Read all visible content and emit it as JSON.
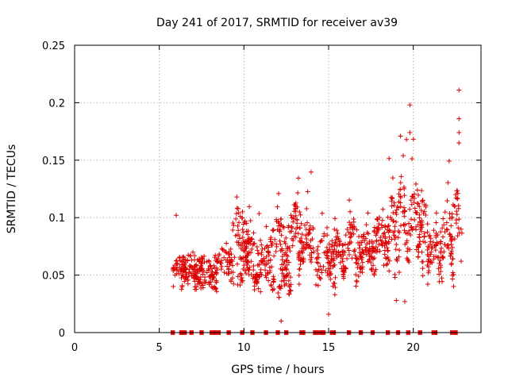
{
  "chart_data": {
    "type": "scatter",
    "title": "Day 241 of 2017, SRMTID for receiver av39",
    "xlabel": "GPS time / hours",
    "ylabel": "SRMTID / TECUs",
    "xlim": [
      0,
      24
    ],
    "ylim": [
      0,
      0.25
    ],
    "xticks": [
      0,
      5,
      10,
      15,
      20
    ],
    "xtick_labels": [
      "0",
      "5",
      "10",
      "15",
      "20"
    ],
    "yticks": [
      0,
      0.05,
      0.1,
      0.15,
      0.2,
      0.25
    ],
    "ytick_labels": [
      "0",
      "0.05",
      "0.1",
      "0.15",
      "0.2",
      "0.25"
    ],
    "grid": true,
    "marker": "plus",
    "color": "#dd0000",
    "series": [
      {
        "name": "SRMTID",
        "arcs": [
          {
            "start": 5.8,
            "end": 6.7,
            "base": 0.052,
            "amp": 0.012,
            "spread": 0.01,
            "peak": 0.066
          },
          {
            "start": 6.2,
            "end": 7.6,
            "base": 0.05,
            "amp": 0.01,
            "spread": 0.012,
            "peak": 0.07
          },
          {
            "start": 7.0,
            "end": 8.4,
            "base": 0.048,
            "amp": 0.01,
            "spread": 0.012,
            "peak": 0.068
          },
          {
            "start": 8.0,
            "end": 9.4,
            "base": 0.055,
            "amp": 0.012,
            "spread": 0.012,
            "peak": 0.078
          },
          {
            "start": 9.2,
            "end": 10.3,
            "base": 0.075,
            "amp": 0.025,
            "spread": 0.018,
            "peak": 0.12
          },
          {
            "start": 9.6,
            "end": 11.0,
            "base": 0.055,
            "amp": 0.02,
            "spread": 0.018,
            "peak": 0.11
          },
          {
            "start": 10.5,
            "end": 11.8,
            "base": 0.05,
            "amp": 0.02,
            "spread": 0.015,
            "peak": 0.104
          },
          {
            "start": 11.4,
            "end": 12.6,
            "base": 0.07,
            "amp": 0.022,
            "spread": 0.016,
            "peak": 0.122
          },
          {
            "start": 12.0,
            "end": 12.8,
            "base": 0.04,
            "amp": 0.015,
            "spread": 0.012,
            "peak": 0.08
          },
          {
            "start": 12.6,
            "end": 13.6,
            "base": 0.08,
            "amp": 0.025,
            "spread": 0.018,
            "peak": 0.136
          },
          {
            "start": 13.2,
            "end": 14.4,
            "base": 0.06,
            "amp": 0.03,
            "spread": 0.018,
            "peak": 0.141
          },
          {
            "start": 14.2,
            "end": 15.4,
            "base": 0.055,
            "amp": 0.02,
            "spread": 0.018,
            "peak": 0.104
          },
          {
            "start": 15.0,
            "end": 16.0,
            "base": 0.06,
            "amp": 0.02,
            "spread": 0.015,
            "peak": 0.1
          },
          {
            "start": 15.8,
            "end": 17.0,
            "base": 0.065,
            "amp": 0.025,
            "spread": 0.018,
            "peak": 0.118
          },
          {
            "start": 16.6,
            "end": 17.8,
            "base": 0.06,
            "amp": 0.02,
            "spread": 0.015,
            "peak": 0.106
          },
          {
            "start": 17.4,
            "end": 18.6,
            "base": 0.07,
            "amp": 0.022,
            "spread": 0.016,
            "peak": 0.11
          },
          {
            "start": 18.2,
            "end": 19.2,
            "base": 0.075,
            "amp": 0.035,
            "spread": 0.02,
            "peak": 0.152
          },
          {
            "start": 18.9,
            "end": 19.7,
            "base": 0.08,
            "amp": 0.05,
            "spread": 0.022,
            "peak": 0.174
          },
          {
            "start": 19.6,
            "end": 20.6,
            "base": 0.075,
            "amp": 0.045,
            "spread": 0.022,
            "peak": 0.172
          },
          {
            "start": 20.2,
            "end": 21.0,
            "base": 0.08,
            "amp": 0.025,
            "spread": 0.018,
            "peak": 0.126
          },
          {
            "start": 20.8,
            "end": 21.8,
            "base": 0.06,
            "amp": 0.02,
            "spread": 0.016,
            "peak": 0.105
          },
          {
            "start": 21.5,
            "end": 22.4,
            "base": 0.065,
            "amp": 0.04,
            "spread": 0.02,
            "peak": 0.15
          },
          {
            "start": 22.2,
            "end": 22.9,
            "base": 0.08,
            "amp": 0.035,
            "spread": 0.02,
            "peak": 0.126
          }
        ],
        "outliers": [
          {
            "x": 6.0,
            "y": 0.102
          },
          {
            "x": 19.8,
            "y": 0.198
          },
          {
            "x": 22.7,
            "y": 0.211
          },
          {
            "x": 22.7,
            "y": 0.186
          },
          {
            "x": 22.7,
            "y": 0.174
          },
          {
            "x": 22.7,
            "y": 0.165
          },
          {
            "x": 19.6,
            "y": 0.168
          },
          {
            "x": 19.8,
            "y": 0.174
          },
          {
            "x": 12.2,
            "y": 0.01
          },
          {
            "x": 15.0,
            "y": 0.016
          },
          {
            "x": 19.0,
            "y": 0.028
          },
          {
            "x": 19.5,
            "y": 0.027
          }
        ]
      }
    ],
    "zero_markers": {
      "y": 0,
      "segments": [
        [
          5.7,
          5.9
        ],
        [
          6.2,
          6.6
        ],
        [
          6.8,
          7.0
        ],
        [
          7.4,
          7.6
        ],
        [
          8.0,
          8.6
        ],
        [
          9.0,
          9.2
        ],
        [
          9.8,
          10.0
        ],
        [
          10.4,
          10.6
        ],
        [
          11.2,
          11.4
        ],
        [
          11.9,
          12.1
        ],
        [
          12.4,
          12.6
        ],
        [
          13.3,
          13.6
        ],
        [
          14.1,
          14.8
        ],
        [
          15.1,
          15.4
        ],
        [
          16.1,
          16.3
        ],
        [
          16.8,
          17.0
        ],
        [
          17.5,
          17.7
        ],
        [
          18.4,
          18.6
        ],
        [
          19.0,
          19.2
        ],
        [
          19.6,
          19.8
        ],
        [
          20.3,
          20.5
        ],
        [
          21.1,
          21.4
        ],
        [
          22.2,
          22.6
        ]
      ]
    }
  }
}
